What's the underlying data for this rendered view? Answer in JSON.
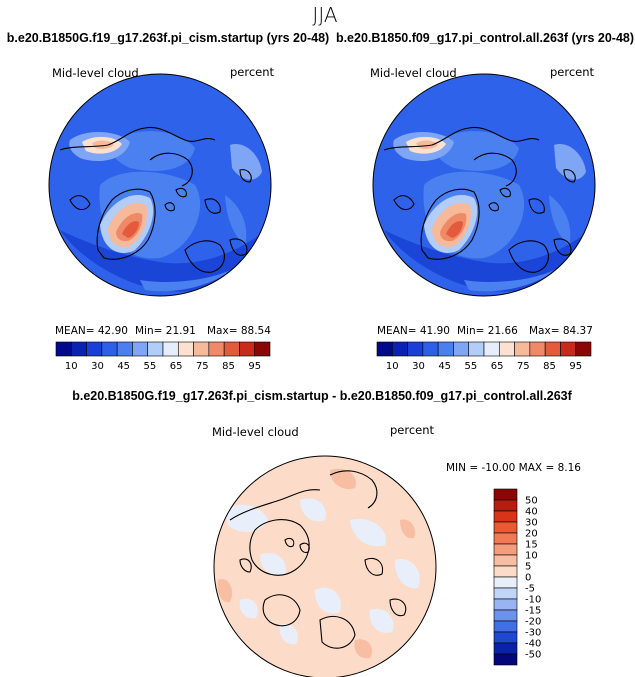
{
  "season": "JJA",
  "chart_data": [
    {
      "type": "heatmap",
      "title": "b.e20.B1850G.f19_g17.263f.pi_cism.startup (yrs 20-48)",
      "variable": "Mid-level cloud",
      "units": "percent",
      "stats": {
        "mean": "MEAN= 42.90",
        "min": "Min= 21.91",
        "max": "Max= 88.54"
      },
      "colorbar": {
        "levels": [
          "10",
          "30",
          "45",
          "55",
          "65",
          "75",
          "85",
          "95"
        ],
        "colors": [
          "#02098a",
          "#0a22b4",
          "#1a3fd8",
          "#2e5fe8",
          "#4a7ff0",
          "#7ea6f5",
          "#b2cdf8",
          "#e7eefb",
          "#fce0d0",
          "#f6b99a",
          "#ef8a68",
          "#e45a3c",
          "#c82b1c",
          "#8c0606"
        ]
      }
    },
    {
      "type": "heatmap",
      "title": "b.e20.B1850.f09_g17.pi_control.all.263f (yrs 20-48)",
      "variable": "Mid-level cloud",
      "units": "percent",
      "stats": {
        "mean": "MEAN= 41.90",
        "min": "Min= 21.66",
        "max": "Max= 84.37"
      },
      "colorbar": {
        "levels": [
          "10",
          "30",
          "45",
          "55",
          "65",
          "75",
          "85",
          "95"
        ],
        "colors": [
          "#02098a",
          "#0a22b4",
          "#1a3fd8",
          "#2e5fe8",
          "#4a7ff0",
          "#7ea6f5",
          "#b2cdf8",
          "#e7eefb",
          "#fce0d0",
          "#f6b99a",
          "#ef8a68",
          "#e45a3c",
          "#c82b1c",
          "#8c0606"
        ]
      }
    },
    {
      "type": "heatmap",
      "title": "b.e20.B1850G.f19_g17.263f.pi_cism.startup - b.e20.B1850.f09_g17.pi_control.all.263f",
      "variable": "Mid-level cloud",
      "units": "percent",
      "stats": {
        "minmax": "MIN = -10.00  MAX =   8.16"
      },
      "colorbar": {
        "levels": [
          "50",
          "40",
          "30",
          "20",
          "15",
          "10",
          "5",
          "0",
          "-5",
          "-10",
          "-15",
          "-20",
          "-30",
          "-40",
          "-50"
        ],
        "colors": [
          "#8c0606",
          "#b81b12",
          "#d83419",
          "#ea5a34",
          "#f07a55",
          "#f49c7c",
          "#f8bea4",
          "#fcdcc8",
          "#e8eefa",
          "#c2d4f7",
          "#98b4f2",
          "#6d92ec",
          "#4070e4",
          "#1f48d0",
          "#0a22aa",
          "#03077a"
        ]
      }
    }
  ]
}
